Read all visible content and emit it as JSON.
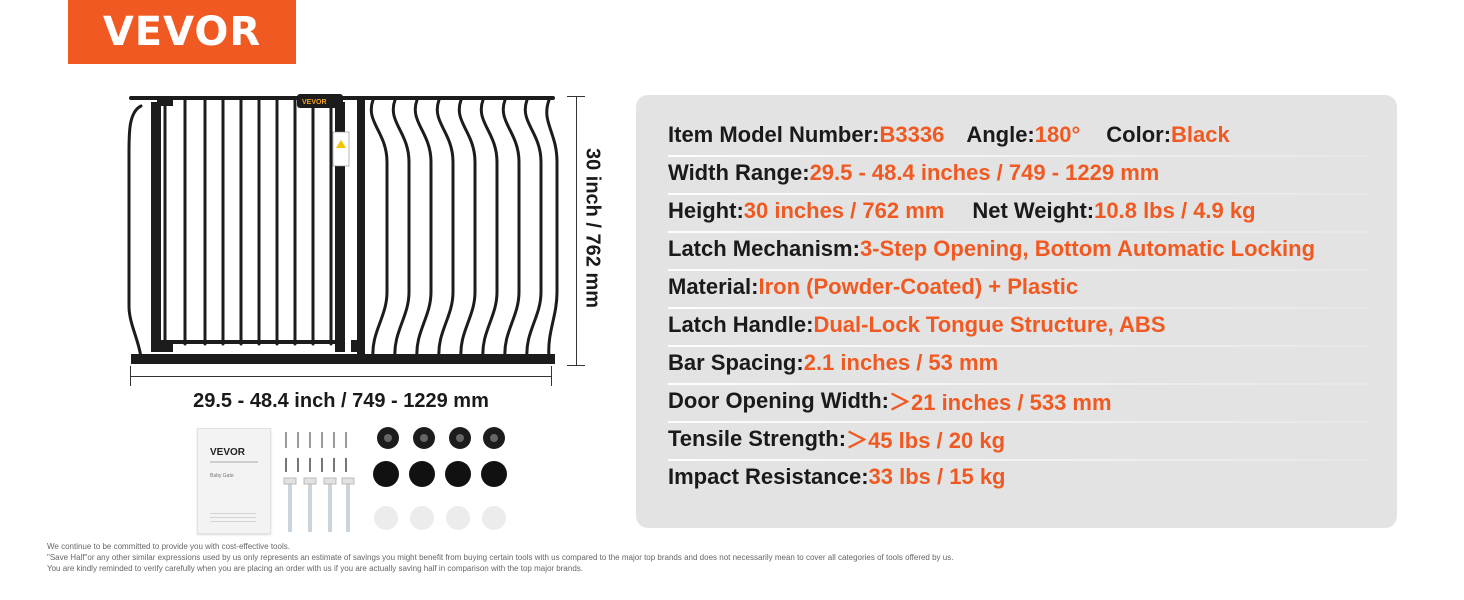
{
  "brand": {
    "logo_text": "VEVOR",
    "color": "#f05a22"
  },
  "product_image": {
    "gate_icon": "baby-gate-drawing",
    "gate_logo_text": "VEVOR",
    "width_dimension": "29.5 - 48.4 inch / 749 - 1229 mm",
    "height_dimension": "30 inch / 762 mm",
    "manual_brand": "VEVOR",
    "manual_caption": "Baby Gate"
  },
  "specs": [
    {
      "segments": [
        {
          "k": "Item Model Number: ",
          "v": "B3336"
        },
        {
          "k": "Angle: ",
          "v": "180°"
        },
        {
          "k": "Color: ",
          "v": "Black"
        }
      ]
    },
    {
      "segments": [
        {
          "k": "Width Range: ",
          "v": "29.5 - 48.4 inches / 749 - 1229 mm"
        }
      ]
    },
    {
      "segments": [
        {
          "k": "Height: ",
          "v": "30 inches / 762 mm"
        },
        {
          "k": "Net Weight: ",
          "v": "10.8 lbs / 4.9 kg"
        }
      ]
    },
    {
      "segments": [
        {
          "k": "Latch Mechanism: ",
          "v": "3-Step Opening, Bottom Automatic Locking"
        }
      ]
    },
    {
      "segments": [
        {
          "k": "Material: ",
          "v": "Iron (Powder-Coated) + Plastic"
        }
      ]
    },
    {
      "segments": [
        {
          "k": "Latch Handle: ",
          "v": "Dual-Lock Tongue Structure, ABS"
        }
      ]
    },
    {
      "segments": [
        {
          "k": "Bar Spacing: ",
          "v": "2.1 inches / 53 mm"
        }
      ]
    },
    {
      "segments": [
        {
          "k": "Door Opening Width: ",
          "v": "＞21 inches / 533 mm"
        }
      ]
    },
    {
      "segments": [
        {
          "k": "Tensile Strength: ",
          "v": "＞45 lbs / 20 kg"
        }
      ]
    },
    {
      "segments": [
        {
          "k": "Impact Resistance: ",
          "v": "33 lbs / 15 kg"
        }
      ]
    }
  ],
  "footnotes": [
    "We continue to be committed to provide you with cost-effective tools.",
    "\"Save Half\"or any other similar expressions used by us only represents an estimate of savings you might benefit from buying certain tools with us compared to the major top brands and does not necessarily mean to cover all categories of tools offered by us.",
    "You are kindly reminded to verify carefully when you are placing an order with us if you are actually saving half in comparison with the top major brands."
  ]
}
